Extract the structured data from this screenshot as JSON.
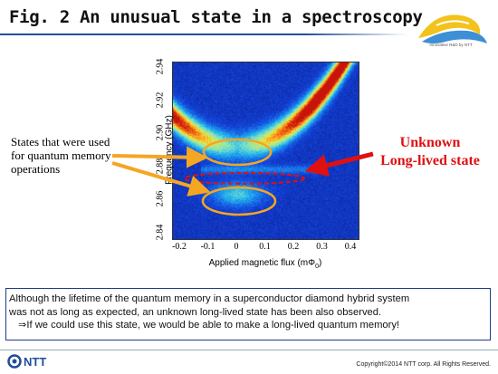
{
  "slide": {
    "title": "Fig. 2 An unusual state in a spectroscopy",
    "logo_caption": "Innovative R&D by NTT",
    "footer_logo_text": "NTT",
    "copyright": "Copyright©2014 NTT corp. All Rights Reserved.",
    "annotation_states": "States that were used for quantum memory operations",
    "annotation_unknown_line1": "Unknown",
    "annotation_unknown_line2": "Long-lived state",
    "summary_line1": "Although the lifetime of the quantum memory in a superconductor diamond hybrid system",
    "summary_line2": "was not as long as expected, an unknown long-lived state has been also observed.",
    "summary_line3": "⇒If we could use this state, we would be able to make a long-lived quantum memory!"
  },
  "colors": {
    "title_rule": "#1f4e99",
    "ellipse_orange": "#f5a623",
    "unknown_red": "#e01010",
    "box_border": "#1f3c88"
  },
  "chart_data": {
    "type": "heatmap",
    "xlabel": "Applied magnetic flux (mΦ0)",
    "ylabel": "Frequency (GHz)",
    "xlim": [
      -0.2,
      0.4
    ],
    "ylim": [
      2.84,
      2.94
    ],
    "x_ticks": [
      "-0.2",
      "-0.1",
      "0",
      "0.1",
      "0.2",
      "0.3",
      "0.4"
    ],
    "y_ticks": [
      "2.84",
      "2.86",
      "2.88",
      "2.90",
      "2.92",
      "2.94"
    ],
    "features": [
      {
        "kind": "parabola",
        "vertex_x": 0.0,
        "vertex_y": 2.893,
        "curvature": 0.36,
        "width": 0.006
      },
      {
        "kind": "spot",
        "x": 0.0,
        "y": 2.864,
        "rx": 0.1,
        "ry": 0.008
      },
      {
        "kind": "band",
        "y": 2.879,
        "x_from": -0.13,
        "x_to": 0.28,
        "width": 0.0018
      }
    ],
    "markers": [
      {
        "shape": "ellipse",
        "x": 0.0,
        "y": 2.896,
        "rx": 0.11,
        "ry": 0.0085,
        "color": "#f5a623"
      },
      {
        "shape": "ellipse",
        "x": 0.0,
        "y": 2.865,
        "rx": 0.12,
        "ry": 0.0085,
        "color": "#f5a623"
      },
      {
        "shape": "dashed-ellipse",
        "x": 0.07,
        "y": 2.879,
        "rx": 0.2,
        "ry": 0.0035,
        "color": "#e01010"
      }
    ]
  }
}
